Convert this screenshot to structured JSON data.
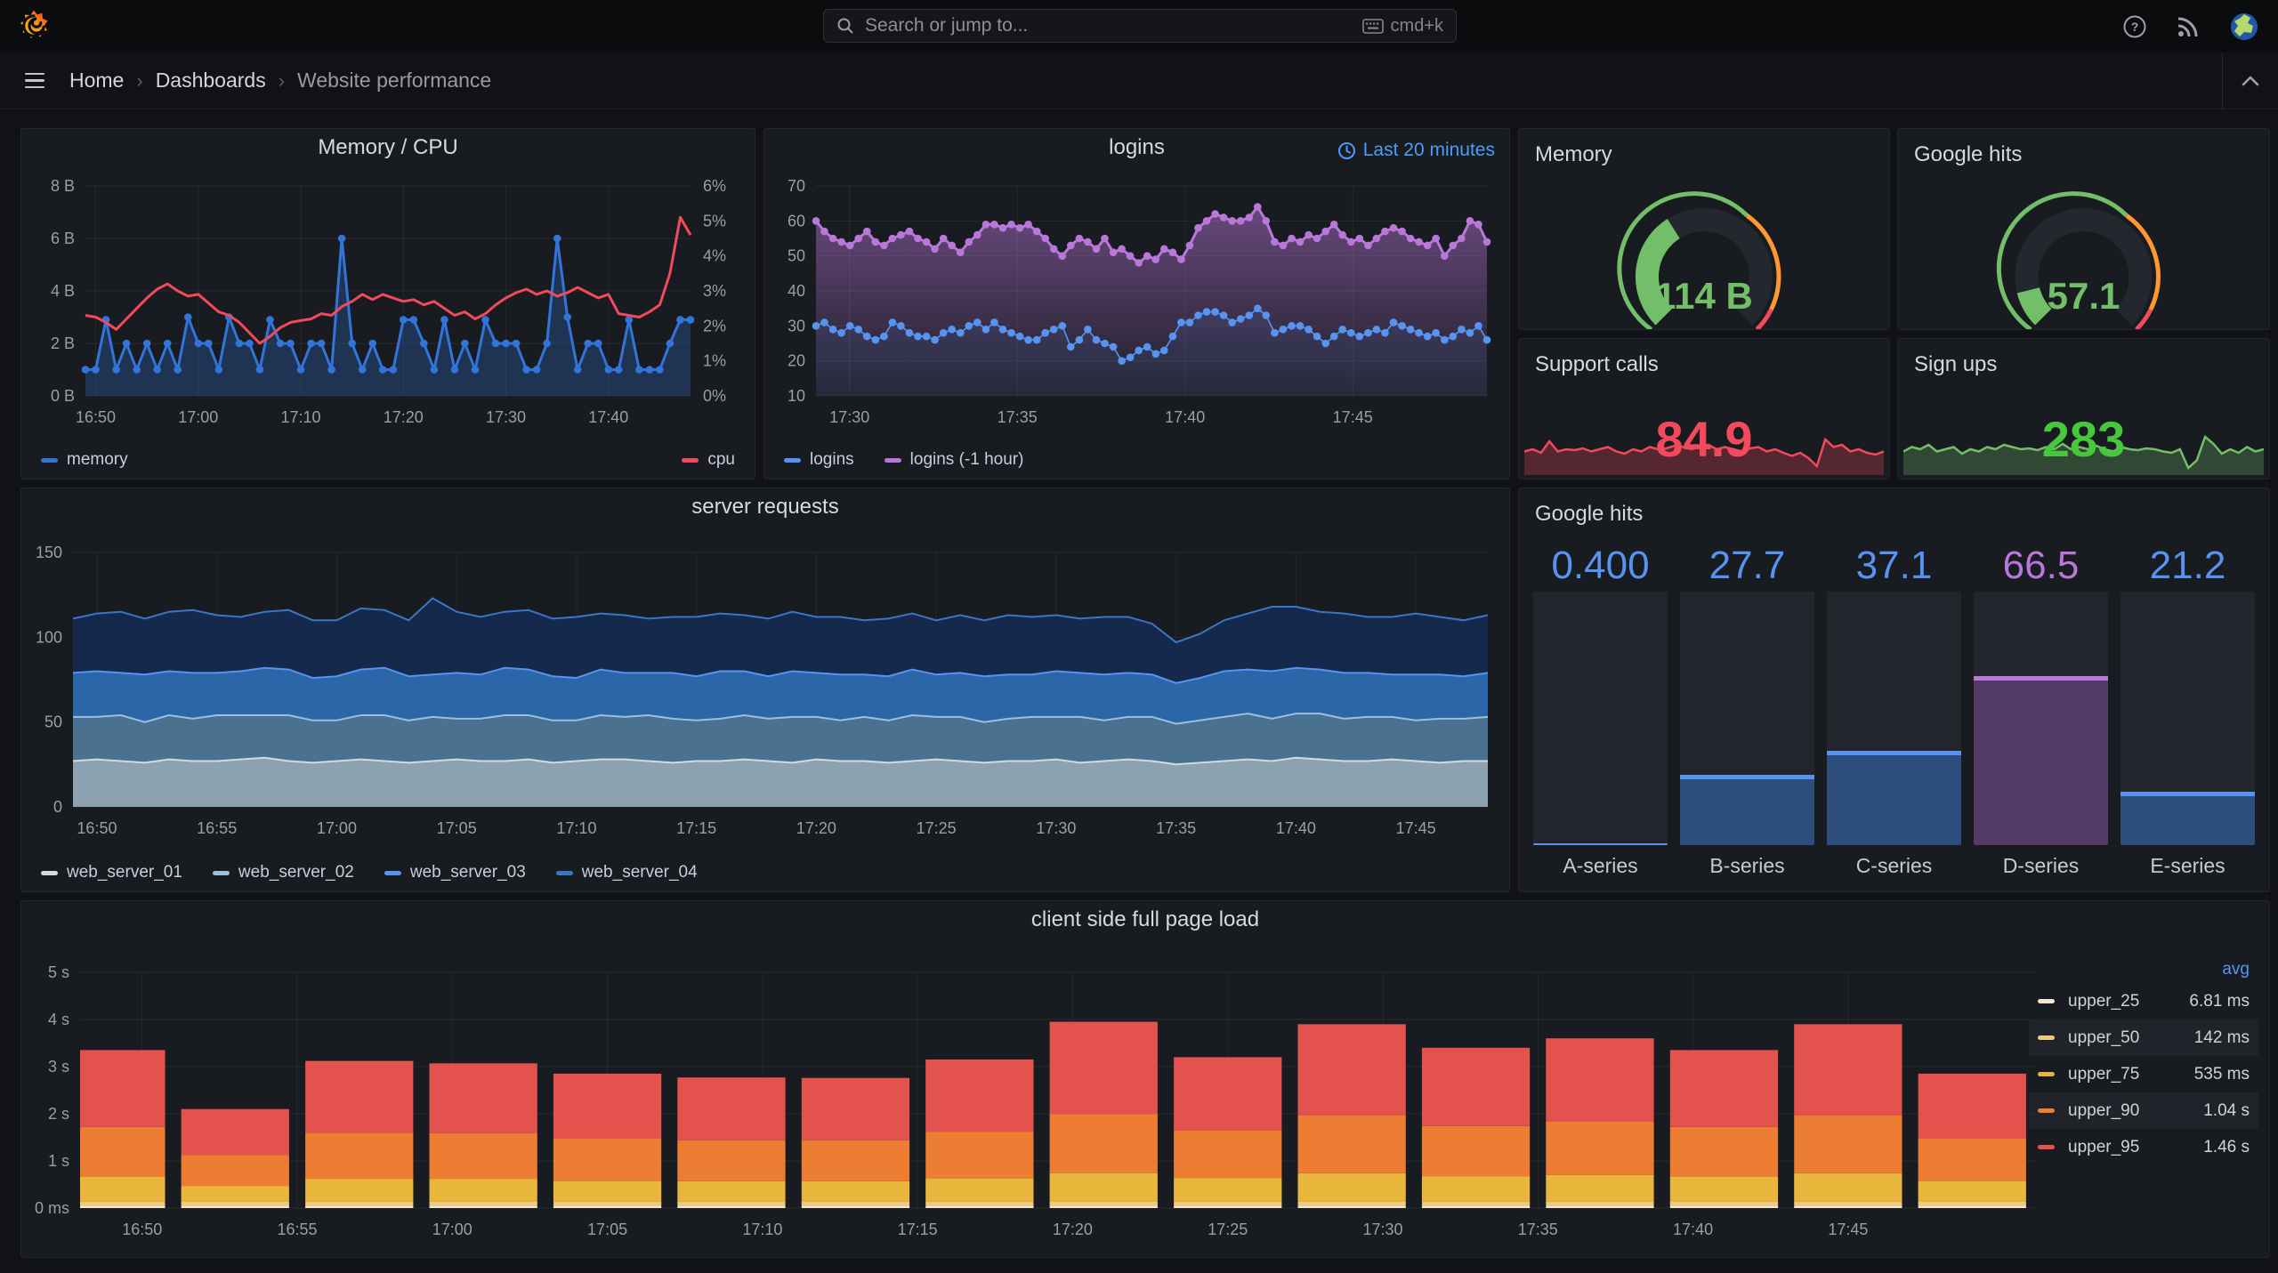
{
  "topnav": {
    "search_placeholder": "Search or jump to...",
    "shortcut": "cmd+k"
  },
  "breadcrumb": {
    "items": [
      "Home",
      "Dashboards",
      "Website performance"
    ]
  },
  "colors": {
    "accent_blue": "#5794F2",
    "accent_purple": "#B877D9",
    "green": "#73BF69",
    "orange": "#FF9830",
    "red": "#F2495C",
    "panel_bg": "#181b20",
    "page_bg": "#111217"
  },
  "chart_data": [
    {
      "type": "timeseries",
      "title": "Memory / CPU",
      "x": {
        "start": "16:49",
        "end": "17:48",
        "ticks": [
          "16:50",
          "17:00",
          "17:10",
          "17:20",
          "17:30",
          "17:40"
        ]
      },
      "y_left": {
        "min": 0,
        "max": 8,
        "ticks": [
          "8 B",
          "6 B",
          "4 B",
          "2 B",
          "0 B"
        ]
      },
      "y_right": {
        "min": 0,
        "max": 6,
        "ticks": [
          "6%",
          "5%",
          "4%",
          "3%",
          "2%",
          "1%",
          "0%"
        ]
      },
      "series": [
        {
          "name": "memory",
          "axis": "left",
          "style": "area-points",
          "color": "#3274D9",
          "fill_opacity": 0.28,
          "values": [
            1,
            1,
            2.9,
            1,
            2,
            1,
            2,
            1,
            2,
            1,
            3,
            2,
            2,
            1,
            3,
            2,
            2,
            1,
            2.9,
            2,
            2,
            1,
            2,
            2,
            1,
            6,
            2,
            1,
            2,
            1,
            1,
            2.9,
            2.9,
            2,
            1,
            2.9,
            1,
            2,
            1,
            2.9,
            2,
            2,
            2,
            1,
            1,
            2,
            6,
            3,
            1,
            2,
            2,
            1,
            1,
            2.9,
            1,
            1,
            1,
            2,
            2.9,
            2.9
          ]
        },
        {
          "name": "cpu",
          "axis": "right",
          "style": "line",
          "color": "#F2495C",
          "values": [
            2.3,
            2.25,
            2.1,
            1.9,
            2.2,
            2.5,
            2.8,
            3.05,
            3.2,
            3.0,
            2.85,
            2.9,
            2.65,
            2.4,
            2.3,
            2.1,
            1.8,
            1.5,
            1.7,
            1.95,
            2.1,
            2.15,
            2.2,
            2.35,
            2.3,
            2.55,
            2.7,
            2.9,
            2.75,
            2.9,
            2.8,
            2.7,
            2.75,
            2.6,
            2.7,
            2.5,
            2.3,
            2.4,
            2.2,
            2.35,
            2.6,
            2.8,
            2.95,
            3.05,
            2.9,
            3.0,
            2.85,
            2.95,
            3.1,
            2.95,
            2.8,
            2.9,
            2.35,
            2.3,
            2.25,
            2.4,
            2.6,
            3.5,
            5.1,
            4.6
          ]
        }
      ],
      "legend_split": true
    },
    {
      "type": "timeseries",
      "title": "logins",
      "time_badge": "Last 20 minutes",
      "x": {
        "start": "17:29",
        "end": "17:49",
        "ticks": [
          "17:30",
          "17:35",
          "17:40",
          "17:45"
        ]
      },
      "y_left": {
        "min": 10,
        "max": 70,
        "ticks": [
          "70",
          "60",
          "50",
          "40",
          "30",
          "20",
          "10"
        ]
      },
      "series": [
        {
          "name": "logins (-1 hour)",
          "axis": "left",
          "style": "area-points",
          "color": "#B877D9",
          "gradient": true,
          "values": [
            60,
            57,
            55,
            54,
            53,
            55,
            57,
            54,
            53,
            55,
            56,
            57,
            55,
            54,
            52,
            55,
            53,
            51,
            54,
            56,
            59,
            59,
            58,
            59,
            58,
            59,
            57,
            55,
            52,
            50,
            53,
            55,
            54,
            52,
            55,
            51,
            52,
            50,
            48,
            50,
            49,
            52,
            51,
            49,
            53,
            58,
            60,
            62,
            61,
            60,
            60,
            61,
            64,
            60,
            54,
            53,
            55,
            54,
            56,
            55,
            57,
            59,
            56,
            54,
            55,
            53,
            55,
            57,
            58,
            57,
            55,
            54,
            53,
            55,
            50,
            53,
            55,
            60,
            59,
            54
          ]
        },
        {
          "name": "logins",
          "axis": "left",
          "style": "points",
          "color": "#5794F2",
          "fill_opacity": 0.1,
          "values": [
            30,
            31,
            29,
            28,
            30,
            29,
            27,
            26,
            27,
            31,
            30,
            28,
            27,
            27,
            26,
            28,
            29,
            28,
            30,
            31,
            29,
            31,
            29,
            28,
            27,
            26,
            26,
            28,
            29,
            30,
            24,
            26,
            29,
            26,
            25,
            24,
            20,
            21,
            23,
            24,
            22,
            23,
            27,
            31,
            31,
            33,
            34,
            34,
            33,
            31,
            32,
            33,
            35,
            33,
            28,
            29,
            30,
            30,
            29,
            27,
            25,
            27,
            29,
            28,
            27,
            28,
            29,
            28,
            31,
            30,
            29,
            28,
            27,
            28,
            26,
            27,
            29,
            28,
            30,
            26
          ]
        }
      ],
      "legend": [
        {
          "name": "logins",
          "color": "#5794F2"
        },
        {
          "name": "logins (-1 hour)",
          "color": "#B877D9"
        }
      ]
    },
    {
      "type": "gauge",
      "title": "Memory",
      "value": "114 B",
      "fraction": 0.38,
      "value_color": "#73BF69",
      "thresholds": [
        {
          "upto": 0.63,
          "color": "#73BF69"
        },
        {
          "upto": 0.93,
          "color": "#FF9830"
        },
        {
          "upto": 1,
          "color": "#F2495C"
        }
      ]
    },
    {
      "type": "gauge",
      "title": "Google hits",
      "value": "57.1",
      "fraction": 0.115,
      "value_color": "#73BF69",
      "thresholds": [
        {
          "upto": 0.63,
          "color": "#73BF69"
        },
        {
          "upto": 0.93,
          "color": "#FF9830"
        },
        {
          "upto": 1,
          "color": "#F2495C"
        }
      ]
    },
    {
      "type": "stat",
      "title": "Support calls",
      "value": "84.9",
      "value_color": "#F2495C",
      "line_color": "#F2495C",
      "spark": [
        0.45,
        0.5,
        0.42,
        0.68,
        0.45,
        0.5,
        0.48,
        0.52,
        0.45,
        0.5,
        0.55,
        0.45,
        0.4,
        0.5,
        0.45,
        0.55,
        0.5,
        0.52,
        0.58,
        0.55,
        0.5,
        0.55,
        0.6,
        0.5,
        0.55,
        0.5,
        0.45,
        0.52,
        0.55,
        0.45,
        0.5,
        0.42,
        0.35,
        0.42,
        0.3,
        0.12,
        0.72,
        0.55,
        0.6,
        0.45,
        0.5,
        0.42,
        0.38,
        0.45
      ]
    },
    {
      "type": "stat",
      "title": "Sign ups",
      "value": "283",
      "value_color": "#47c73c",
      "line_color": "#73BF69",
      "spark": [
        0.45,
        0.55,
        0.5,
        0.6,
        0.45,
        0.5,
        0.55,
        0.4,
        0.5,
        0.45,
        0.55,
        0.5,
        0.6,
        0.55,
        0.5,
        0.52,
        0.48,
        0.55,
        0.5,
        0.62,
        0.5,
        0.55,
        0.5,
        0.58,
        0.5,
        0.45,
        0.55,
        0.5,
        0.48,
        0.52,
        0.5,
        0.45,
        0.42,
        0.5,
        0.08,
        0.25,
        0.78,
        0.62,
        0.4,
        0.5,
        0.42,
        0.55,
        0.45,
        0.5
      ]
    },
    {
      "type": "stacked-area",
      "title": "server requests",
      "x": {
        "start": "16:49",
        "end": "17:48",
        "ticks": [
          "16:50",
          "16:55",
          "17:00",
          "17:05",
          "17:10",
          "17:15",
          "17:20",
          "17:25",
          "17:30",
          "17:35",
          "17:40",
          "17:45"
        ]
      },
      "y_left": {
        "min": 0,
        "max": 150,
        "ticks": [
          "150",
          "100",
          "50",
          "0"
        ]
      },
      "series": [
        {
          "name": "web_server_01",
          "fill": "#8da2b0",
          "stroke": "#cfdbe2",
          "values": [
            27,
            28,
            27,
            26,
            28,
            27,
            27,
            28,
            29,
            27,
            26,
            27,
            28,
            27,
            26,
            27,
            28,
            27,
            27,
            28,
            26,
            27,
            28,
            28,
            27,
            26,
            27,
            27,
            28,
            27,
            26,
            28,
            27,
            27,
            26,
            27,
            28,
            27,
            26,
            27,
            27,
            28,
            26,
            27,
            28,
            27,
            25,
            26,
            27,
            28,
            27,
            29,
            28,
            27,
            27,
            28,
            27,
            26,
            27,
            27
          ]
        },
        {
          "name": "web_server_02",
          "fill": "#4b7191",
          "stroke": "#9cc0da",
          "values": [
            26,
            25,
            27,
            24,
            26,
            25,
            27,
            26,
            25,
            27,
            25,
            24,
            26,
            27,
            25,
            26,
            24,
            25,
            27,
            26,
            25,
            24,
            26,
            25,
            27,
            26,
            24,
            25,
            26,
            25,
            27,
            25,
            24,
            26,
            25,
            27,
            25,
            26,
            24,
            25,
            26,
            25,
            27,
            24,
            25,
            26,
            24,
            25,
            26,
            27,
            25,
            26,
            27,
            25,
            26,
            25,
            24,
            26,
            25,
            26
          ]
        },
        {
          "name": "web_server_03",
          "fill": "#2a66a8",
          "stroke": "#5794F2",
          "values": [
            26,
            27,
            25,
            28,
            26,
            27,
            25,
            26,
            28,
            27,
            25,
            26,
            27,
            28,
            26,
            25,
            27,
            26,
            28,
            27,
            26,
            25,
            27,
            26,
            25,
            27,
            26,
            28,
            26,
            25,
            27,
            26,
            27,
            25,
            26,
            27,
            25,
            26,
            27,
            26,
            25,
            27,
            26,
            27,
            26,
            25,
            24,
            25,
            27,
            26,
            28,
            27,
            26,
            27,
            26,
            25,
            27,
            26,
            25,
            26
          ]
        },
        {
          "name": "web_server_04",
          "fill": "#14294b",
          "stroke": "#3a76c6",
          "values": [
            32,
            34,
            36,
            33,
            35,
            37,
            34,
            32,
            33,
            35,
            34,
            33,
            36,
            34,
            33,
            45,
            36,
            34,
            33,
            35,
            34,
            36,
            33,
            34,
            32,
            33,
            35,
            34,
            33,
            34,
            35,
            33,
            34,
            32,
            34,
            33,
            32,
            34,
            33,
            35,
            34,
            33,
            32,
            34,
            33,
            30,
            24,
            26,
            30,
            33,
            38,
            36,
            34,
            35,
            33,
            34,
            36,
            34,
            33,
            34
          ]
        }
      ]
    },
    {
      "type": "bar-gauge",
      "title": "Google hits",
      "max": 100,
      "bars": [
        {
          "label": "A-series",
          "value_text": "0.400",
          "value": 0.4,
          "color": "#5794F2",
          "fill": "#2d4d7c"
        },
        {
          "label": "B-series",
          "value_text": "27.7",
          "value": 27.7,
          "color": "#5794F2",
          "fill": "#2d4d7c"
        },
        {
          "label": "C-series",
          "value_text": "37.1",
          "value": 37.1,
          "color": "#5794F2",
          "fill": "#2d4d7c"
        },
        {
          "label": "D-series",
          "value_text": "66.5",
          "value": 66.5,
          "color": "#B877D9",
          "fill": "#533a69"
        },
        {
          "label": "E-series",
          "value_text": "21.2",
          "value": 21.2,
          "color": "#5794F2",
          "fill": "#2d4d7c"
        }
      ]
    },
    {
      "type": "stacked-bars",
      "title": "client side full page load",
      "x": {
        "start": "16:48",
        "end": "17:51",
        "ticks": [
          "16:50",
          "16:55",
          "17:00",
          "17:05",
          "17:10",
          "17:15",
          "17:20",
          "17:25",
          "17:30",
          "17:35",
          "17:40",
          "17:45"
        ]
      },
      "y_left": {
        "min": 0,
        "max": 5,
        "ticks": [
          "5 s",
          "4 s",
          "3 s",
          "2 s",
          "1 s",
          "0 ms"
        ]
      },
      "bar_width_min": 3.0,
      "stack_colors": [
        "#f6e5d1",
        "#eec97e",
        "#e8b63a",
        "#ed7d33",
        "#e4524e"
      ],
      "bars": [
        {
          "t": "16:49",
          "segments": [
            0.05,
            0.09,
            0.52,
            1.06,
            1.63
          ]
        },
        {
          "t": "16:53",
          "segments": [
            0.05,
            0.09,
            0.33,
            0.66,
            0.97
          ]
        },
        {
          "t": "16:57",
          "segments": [
            0.05,
            0.09,
            0.48,
            0.98,
            1.52
          ]
        },
        {
          "t": "17:01",
          "segments": [
            0.05,
            0.09,
            0.48,
            0.97,
            1.48
          ]
        },
        {
          "t": "17:05",
          "segments": [
            0.05,
            0.09,
            0.44,
            0.9,
            1.37
          ]
        },
        {
          "t": "17:09",
          "segments": [
            0.05,
            0.09,
            0.43,
            0.87,
            1.33
          ]
        },
        {
          "t": "17:13",
          "segments": [
            0.05,
            0.09,
            0.43,
            0.87,
            1.32
          ]
        },
        {
          "t": "17:17",
          "segments": [
            0.05,
            0.09,
            0.49,
            0.99,
            1.53
          ]
        },
        {
          "t": "17:21",
          "segments": [
            0.05,
            0.09,
            0.61,
            1.24,
            1.96
          ]
        },
        {
          "t": "17:25",
          "segments": [
            0.05,
            0.09,
            0.5,
            1.01,
            1.55
          ]
        },
        {
          "t": "17:29",
          "segments": [
            0.05,
            0.09,
            0.6,
            1.23,
            1.93
          ]
        },
        {
          "t": "17:33",
          "segments": [
            0.05,
            0.09,
            0.53,
            1.07,
            1.66
          ]
        },
        {
          "t": "17:37",
          "segments": [
            0.05,
            0.09,
            0.56,
            1.13,
            1.77
          ]
        },
        {
          "t": "17:41",
          "segments": [
            0.05,
            0.09,
            0.52,
            1.06,
            1.63
          ]
        },
        {
          "t": "17:45",
          "segments": [
            0.05,
            0.09,
            0.6,
            1.23,
            1.93
          ]
        },
        {
          "t": "17:49",
          "segments": [
            0.05,
            0.09,
            0.44,
            0.9,
            1.37
          ]
        }
      ],
      "legend": {
        "header": "avg",
        "items": [
          {
            "name": "upper_25",
            "avg": "6.81 ms",
            "color": "#f6e5d1"
          },
          {
            "name": "upper_50",
            "avg": "142 ms",
            "color": "#eec97e"
          },
          {
            "name": "upper_75",
            "avg": "535 ms",
            "color": "#e8b63a"
          },
          {
            "name": "upper_90",
            "avg": "1.04 s",
            "color": "#ed7d33"
          },
          {
            "name": "upper_95",
            "avg": "1.46 s",
            "color": "#e4524e"
          }
        ]
      }
    }
  ]
}
